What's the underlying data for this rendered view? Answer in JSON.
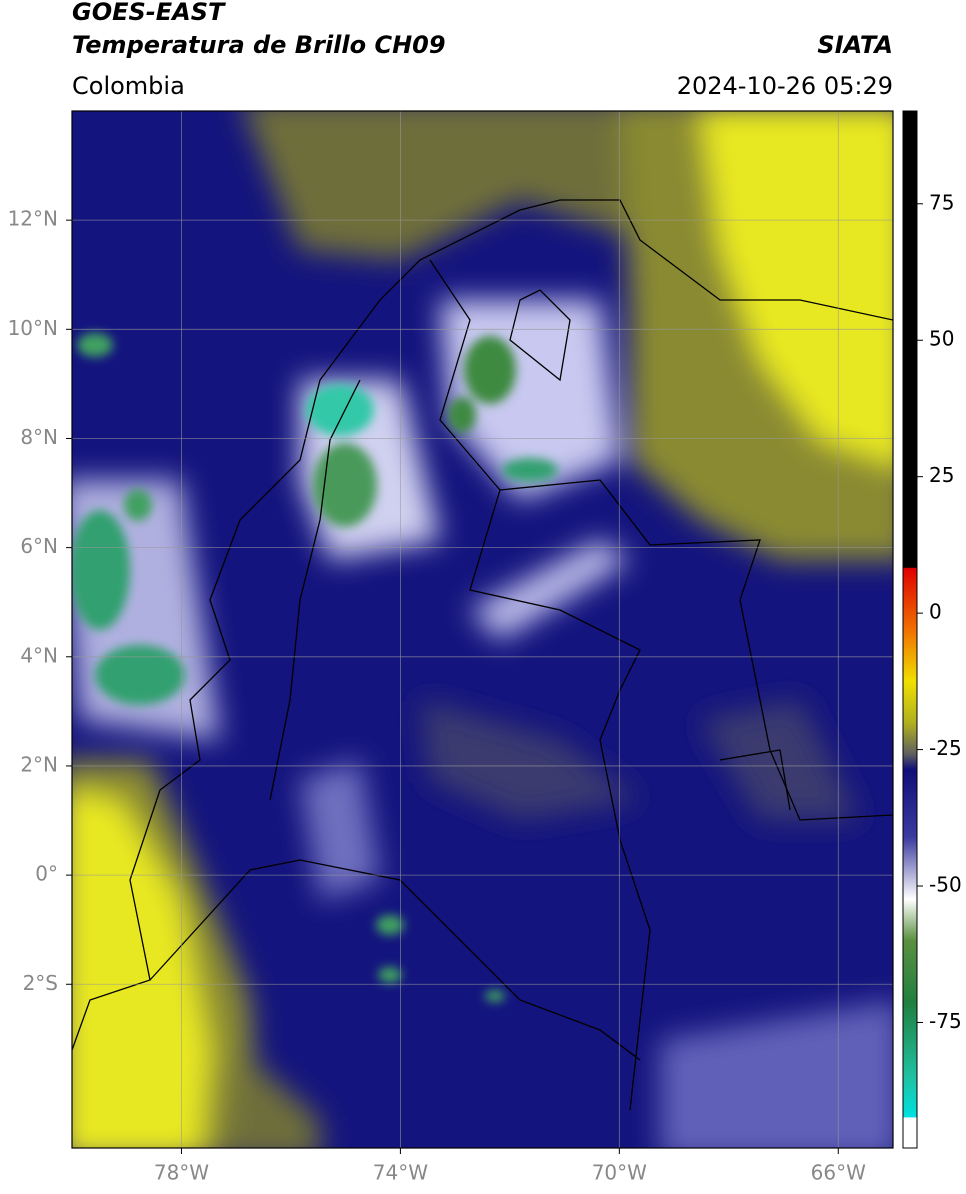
{
  "header": {
    "title": "GOES-EAST",
    "subtitle": "Temperatura de Brillo CH09",
    "source": "SIATA",
    "region": "Colombia",
    "datetime": "2024-10-26 05:29"
  },
  "map": {
    "xlim": [
      -80,
      -65
    ],
    "ylim": [
      -5,
      14
    ],
    "xticks": [
      {
        "value": -78,
        "label": "78°W"
      },
      {
        "value": -74,
        "label": "74°W"
      },
      {
        "value": -70,
        "label": "70°W"
      },
      {
        "value": -66,
        "label": "66°W"
      }
    ],
    "yticks": [
      {
        "value": 12,
        "label": "12°N"
      },
      {
        "value": 10,
        "label": "10°N"
      },
      {
        "value": 8,
        "label": "8°N"
      },
      {
        "value": 6,
        "label": "6°N"
      },
      {
        "value": 4,
        "label": "4°N"
      },
      {
        "value": 2,
        "label": "2°N"
      },
      {
        "value": 0,
        "label": "0°"
      },
      {
        "value": -2,
        "label": "2°S"
      }
    ],
    "grid": true
  },
  "colorbar": {
    "lim": [
      -98,
      92
    ],
    "ticks": [
      75,
      50,
      25,
      0,
      -25,
      -50,
      -75
    ]
  }
}
